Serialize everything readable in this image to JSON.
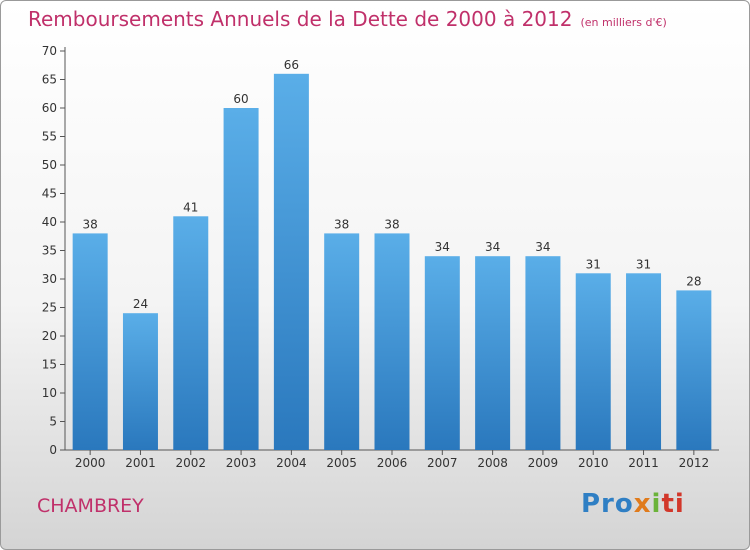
{
  "title": "Remboursements Annuels de la Dette de 2000 à 2012",
  "unit": "(en milliers d'€)",
  "city": "CHAMBREY",
  "logo_parts": [
    "Pro",
    "x",
    "i",
    "ti"
  ],
  "colors": {
    "accent": "#c0306a",
    "bar_top": "#5aaee8",
    "bar_bottom": "#2a78bd"
  },
  "chart_data": {
    "type": "bar",
    "title": "Remboursements Annuels de la Dette de 2000 à 2012",
    "xlabel": "",
    "ylabel": "",
    "categories": [
      "2000",
      "2001",
      "2002",
      "2003",
      "2004",
      "2005",
      "2006",
      "2007",
      "2008",
      "2009",
      "2010",
      "2011",
      "2012"
    ],
    "values": [
      38,
      24,
      41,
      60,
      66,
      38,
      38,
      34,
      34,
      34,
      31,
      31,
      28
    ],
    "ylim": [
      0,
      70
    ],
    "yticks": [
      0,
      5,
      10,
      15,
      20,
      25,
      30,
      35,
      40,
      45,
      50,
      55,
      60,
      65,
      70
    ],
    "grid": false,
    "legend": "none"
  }
}
